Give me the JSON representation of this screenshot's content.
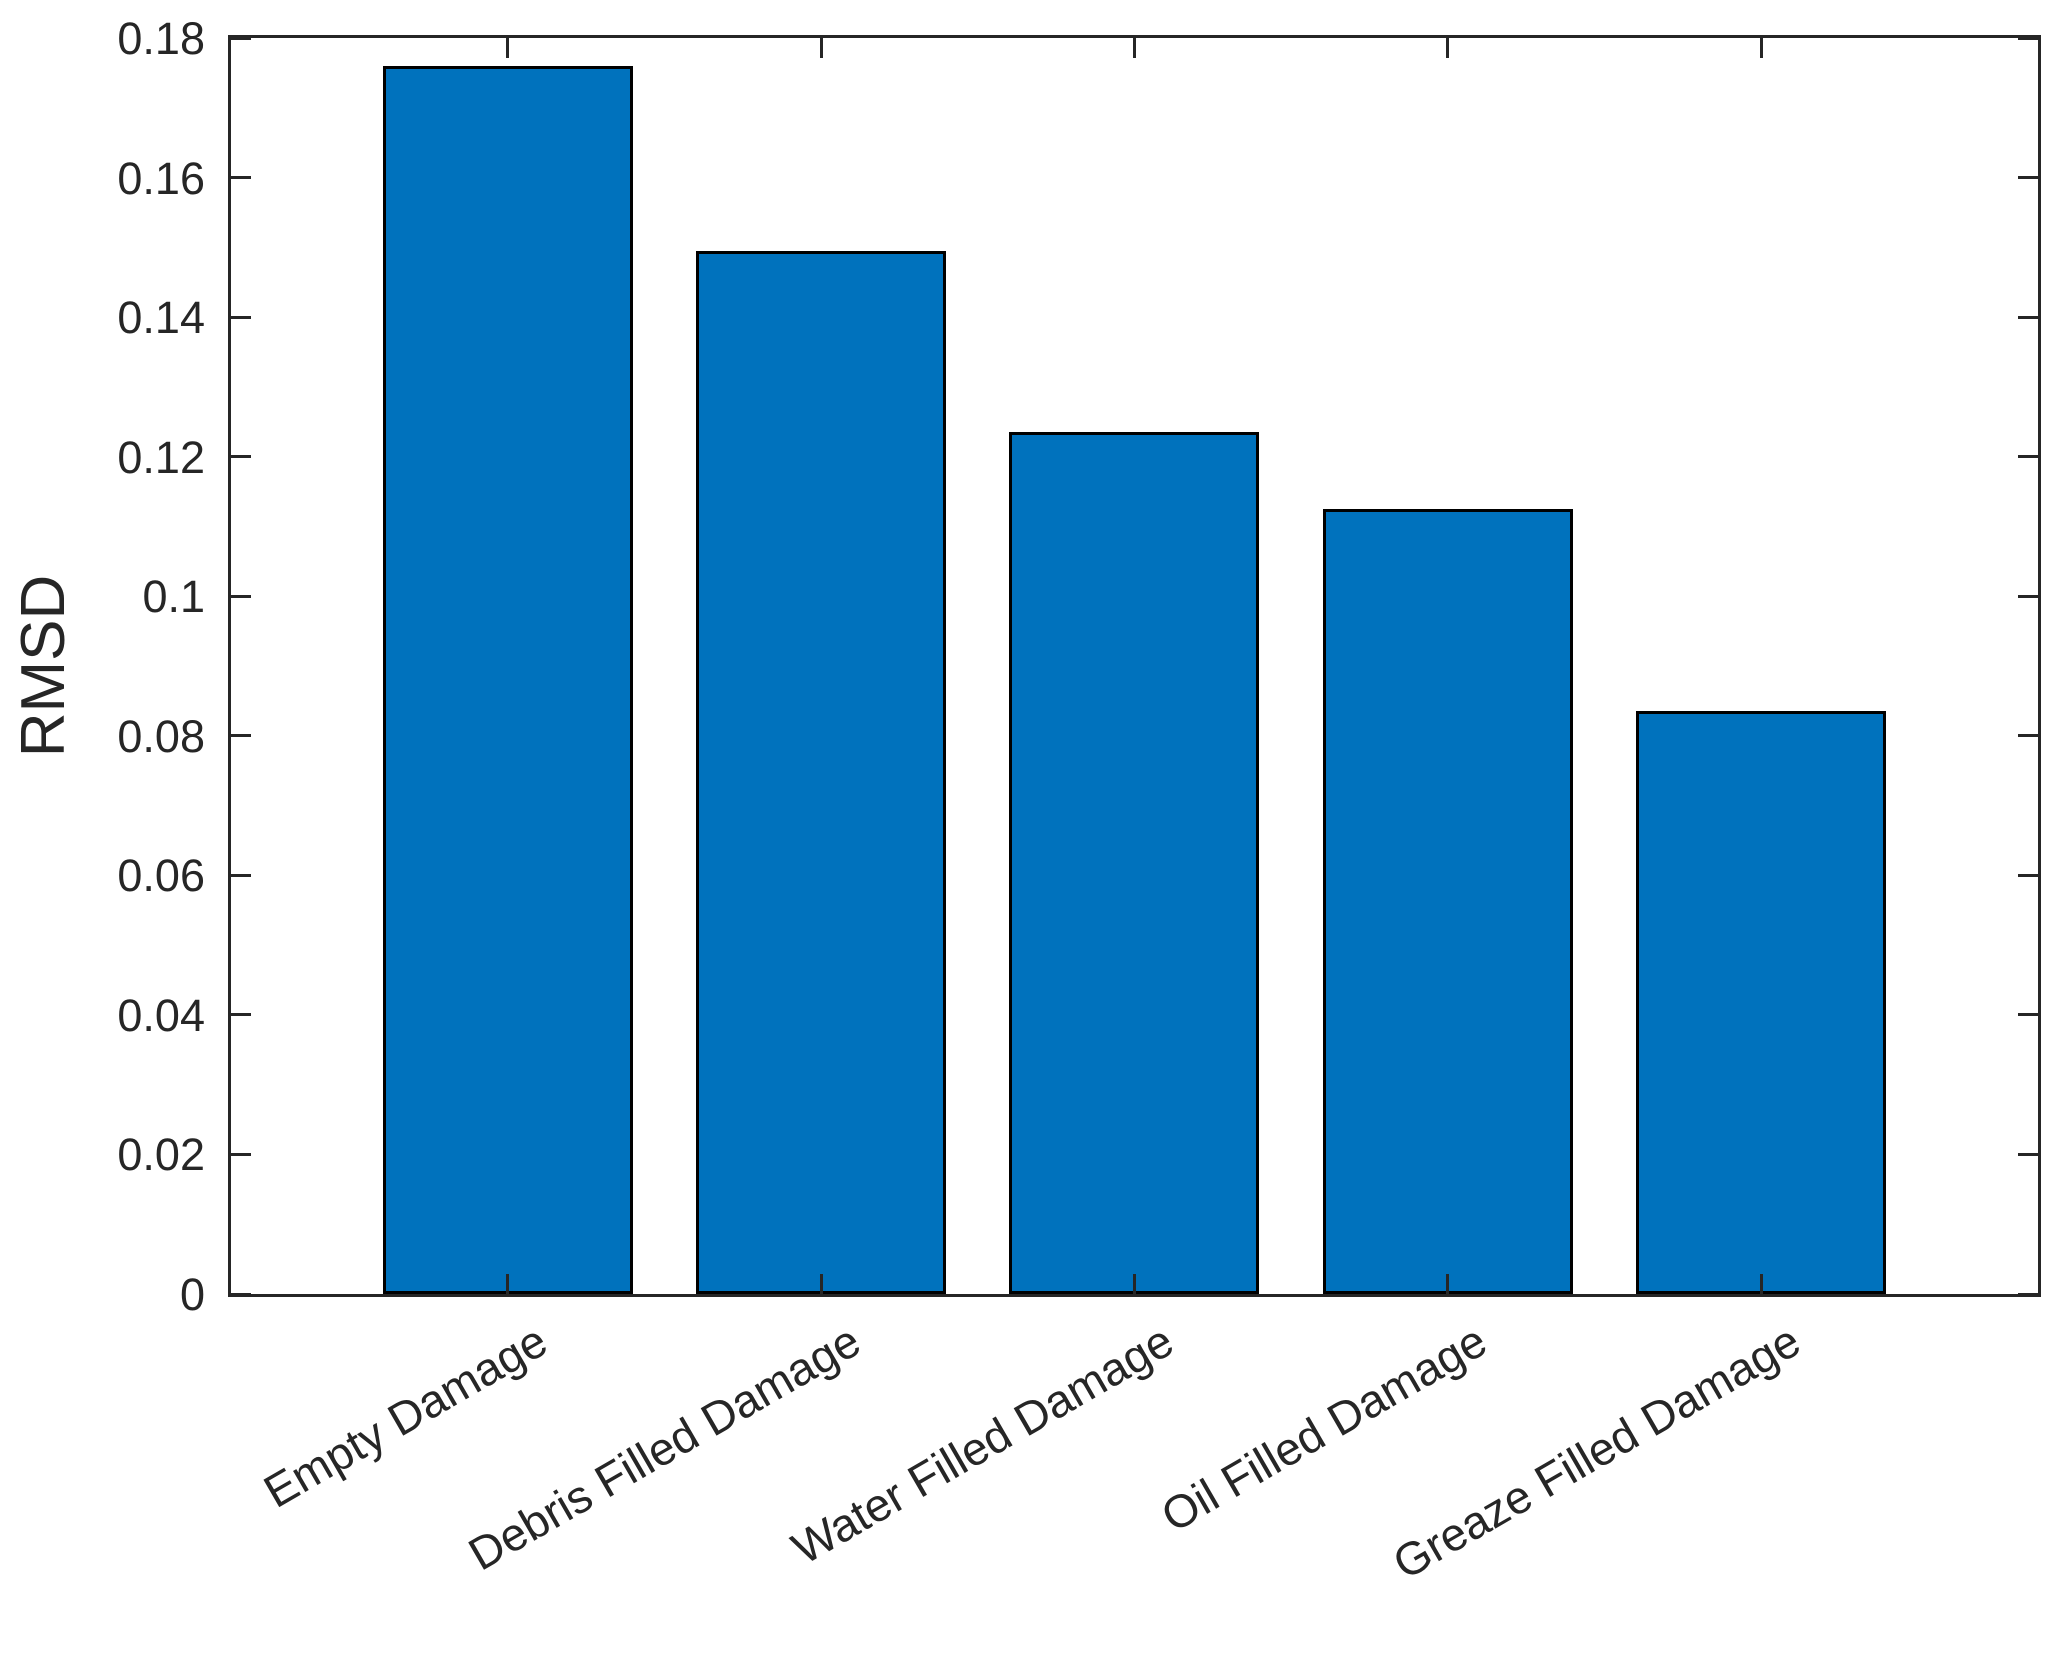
{
  "figure": {
    "background": "#ffffff"
  },
  "chart_data": {
    "type": "bar",
    "title": "",
    "xlabel": "",
    "ylabel": "RMSD",
    "categories": [
      "Empty Damage",
      "Debris Filled Damage",
      "Water Filled Damage",
      "Oil Filled Damage",
      "Greaze Filled Damage"
    ],
    "values": [
      0.176,
      0.1495,
      0.1235,
      0.1125,
      0.0835
    ],
    "series": [
      {
        "name": "RMSD",
        "values": [
          0.176,
          0.1495,
          0.1235,
          0.1125,
          0.0835
        ]
      }
    ],
    "ylim": [
      0,
      0.18
    ],
    "yticks": [
      0,
      0.02,
      0.04,
      0.06,
      0.08,
      0.1,
      0.12,
      0.14,
      0.16,
      0.18
    ],
    "ytick_labels": [
      "0",
      "0.02",
      "0.04",
      "0.06",
      "0.08",
      "0.1",
      "0.12",
      "0.14",
      "0.16",
      "0.18"
    ],
    "xtick_label_rotation_deg": 30,
    "grid": false,
    "legend": null,
    "bar_color": "#0072BD",
    "bar_edge_color": "#000000",
    "axis_color": "#262626",
    "text_color": "#262626"
  }
}
